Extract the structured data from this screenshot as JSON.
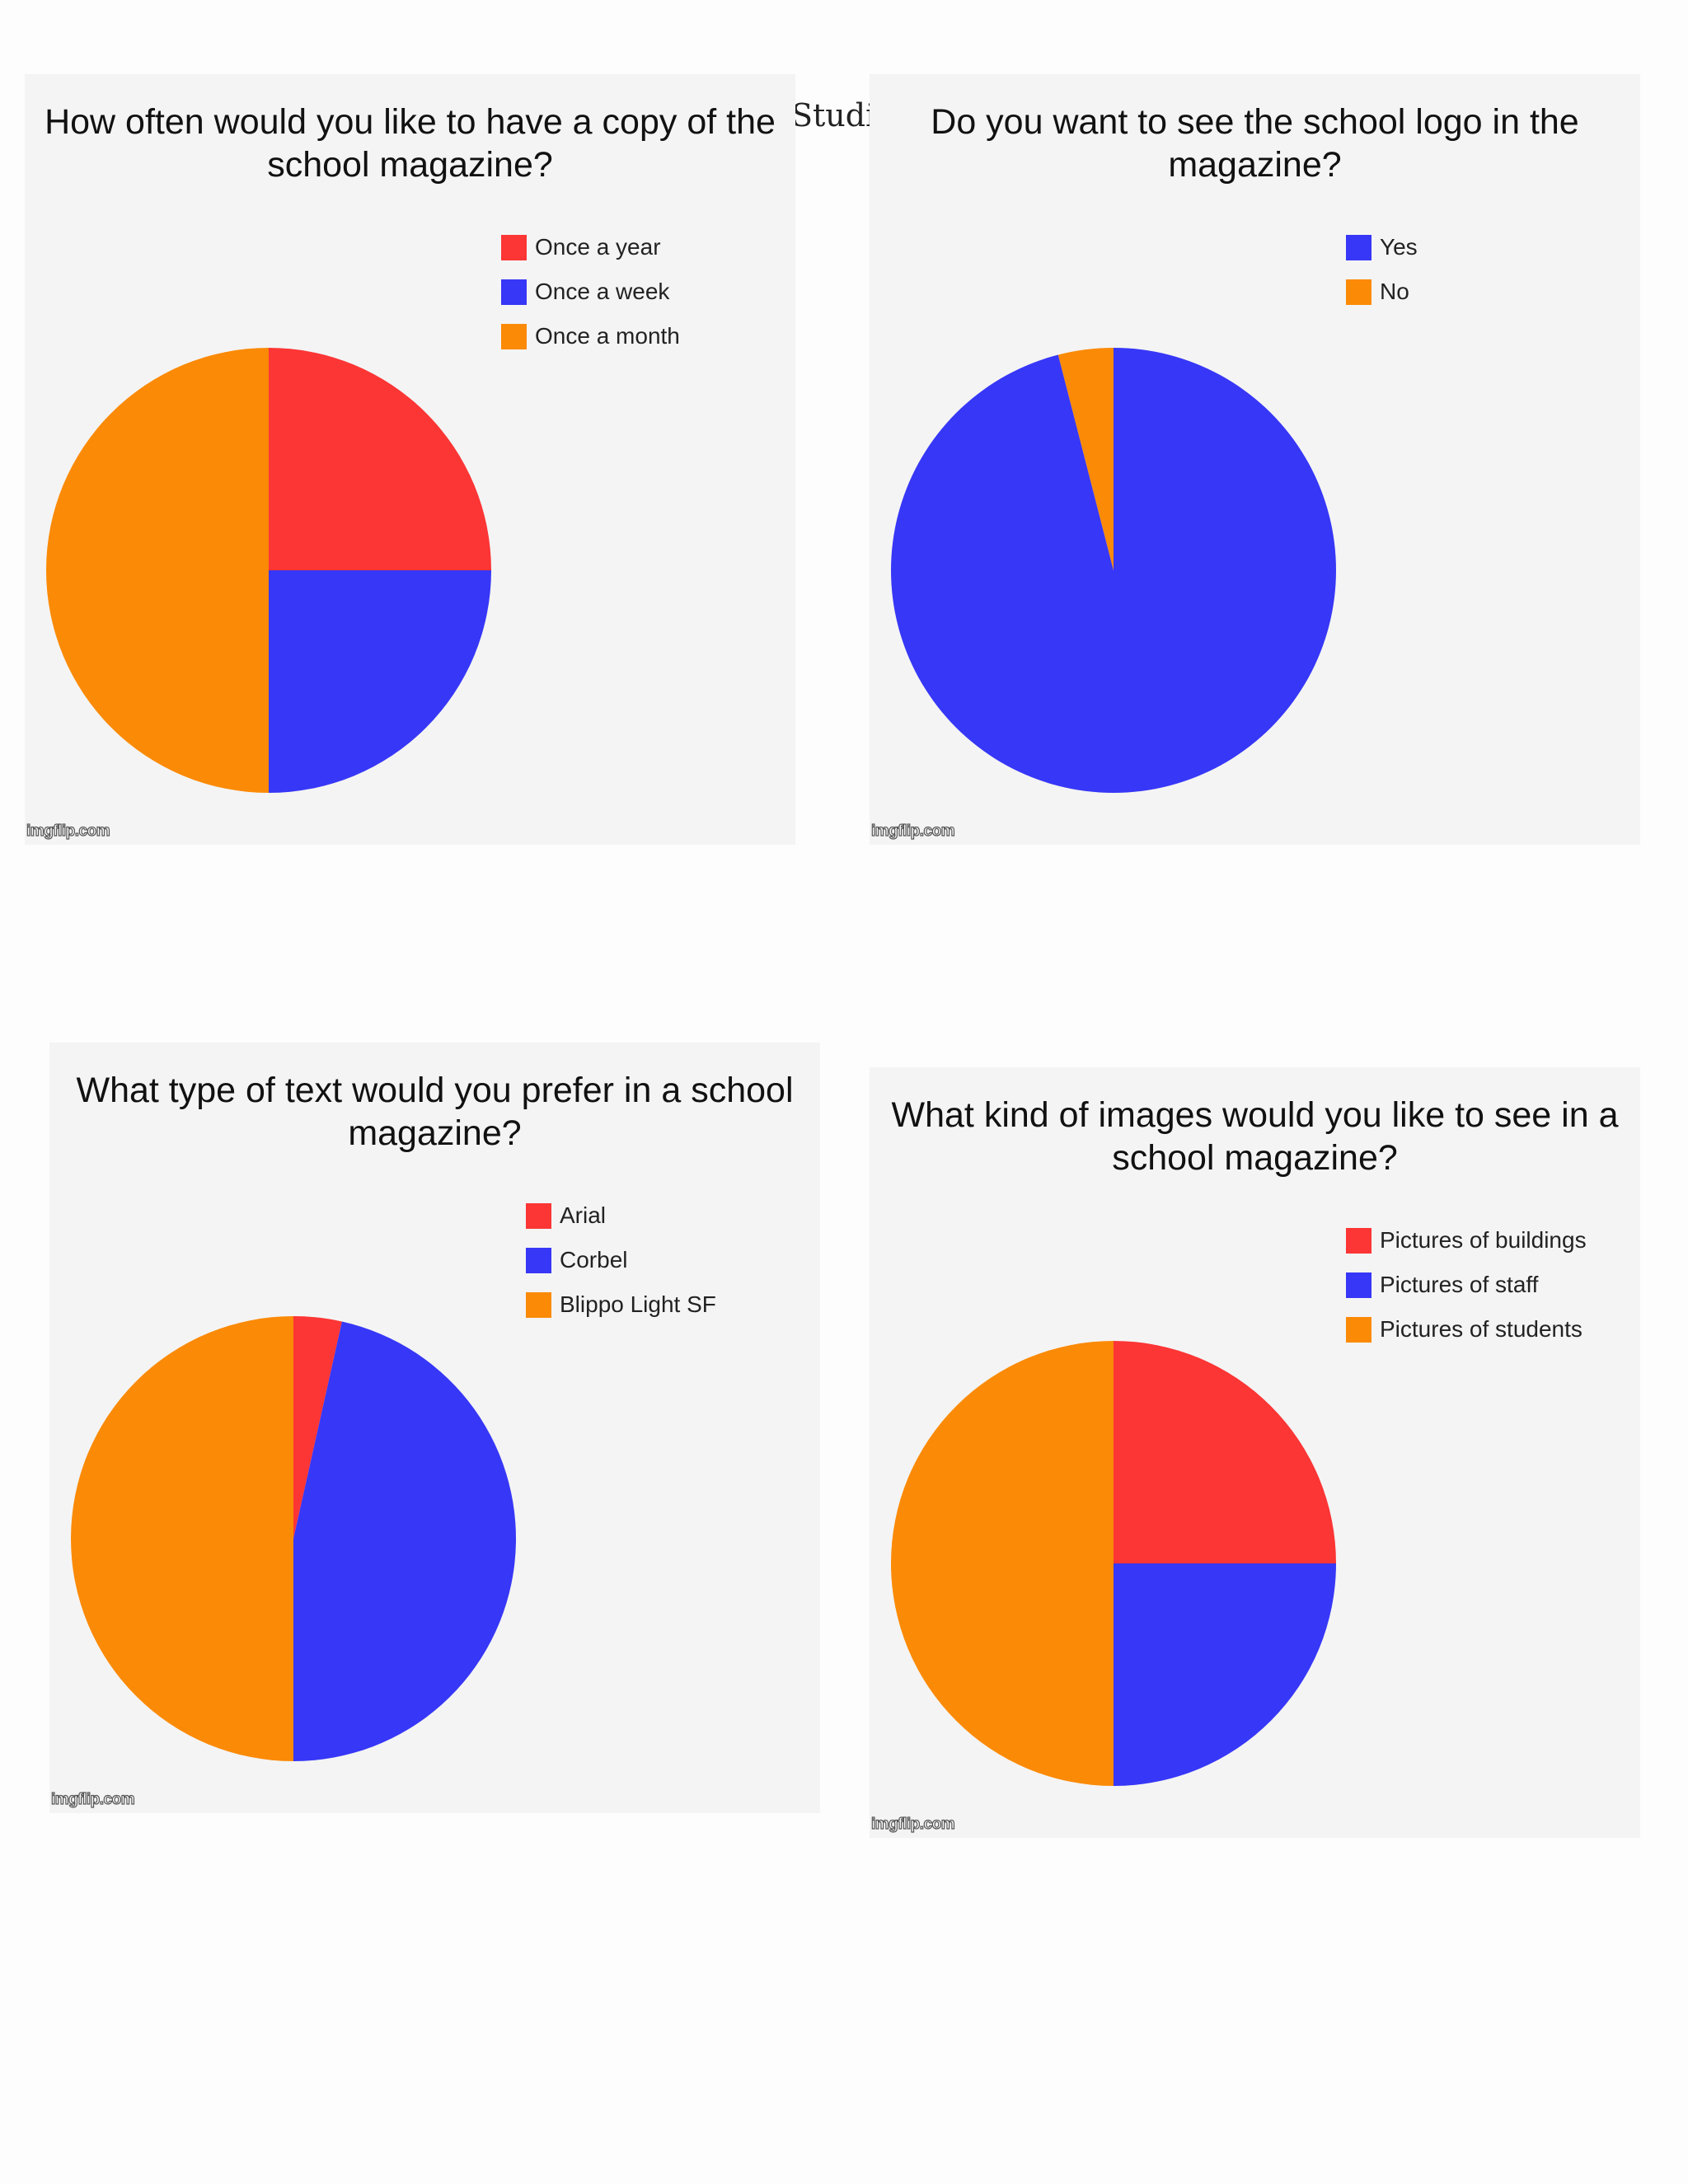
{
  "page": {
    "header_text": "Studie"
  },
  "colors": {
    "red": "#fc3535",
    "blue": "#3737f7",
    "orange": "#fb8a06"
  },
  "watermark_text": "imgflip.com",
  "chart_data": [
    {
      "type": "pie",
      "title": "How often would you like to have a copy of the school magazine?",
      "labels": [
        "Once a year",
        "Once a week",
        "Once a month"
      ],
      "values": [
        25,
        25,
        50
      ],
      "colors": [
        "#fc3535",
        "#3737f7",
        "#fb8a06"
      ],
      "legend_position": "top-right"
    },
    {
      "type": "pie",
      "title": "Do you want to see the school logo in the magazine?",
      "labels": [
        "Yes",
        "No"
      ],
      "values": [
        96,
        4
      ],
      "colors": [
        "#3737f7",
        "#fb8a06"
      ],
      "legend_position": "top-right"
    },
    {
      "type": "pie",
      "title": "What type of text would you prefer in a school magazine?",
      "labels": [
        "Arial",
        "Corbel",
        "Blippo Light SF"
      ],
      "values": [
        3.5,
        46.5,
        50
      ],
      "colors": [
        "#fc3535",
        "#3737f7",
        "#fb8a06"
      ],
      "legend_position": "top-right"
    },
    {
      "type": "pie",
      "title": "What kind of images would you like to see in a school magazine?",
      "labels": [
        "Pictures of buildings",
        "Pictures of staff",
        "Pictures of students"
      ],
      "values": [
        25,
        25,
        50
      ],
      "colors": [
        "#fc3535",
        "#3737f7",
        "#fb8a06"
      ],
      "legend_position": "top-right"
    }
  ]
}
